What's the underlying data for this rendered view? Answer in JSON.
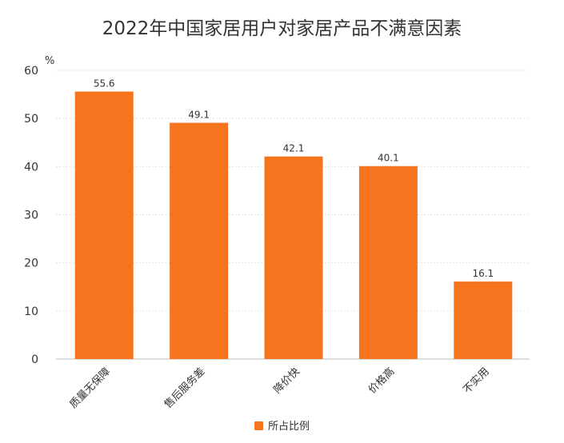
{
  "chart_data": {
    "type": "bar",
    "title": "2022年中国家居用户对家居产品不满意因素",
    "ylabel": "%",
    "ylim": [
      0,
      60
    ],
    "yticks": [
      0,
      10,
      20,
      30,
      40,
      50,
      60
    ],
    "grid": true,
    "legend_position": "bottom",
    "categories": [
      "质量无保障",
      "售后服务差",
      "降价快",
      "价格高",
      "不实用"
    ],
    "series": [
      {
        "name": "所占比例",
        "values": [
          55.6,
          49.1,
          42.1,
          40.1,
          16.1
        ],
        "color": "#F7741F"
      }
    ]
  }
}
